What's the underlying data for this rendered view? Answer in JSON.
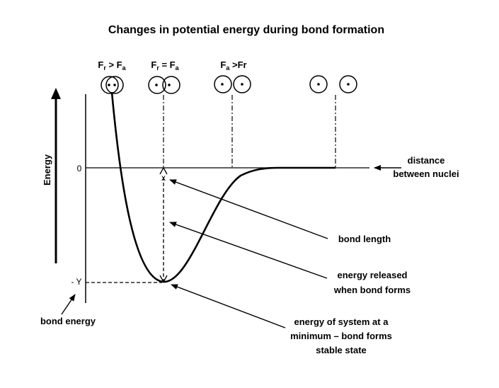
{
  "title": "Changes in potential energy during bond formation",
  "force_labels": [
    {
      "main": "F",
      "sub1": "r",
      "op": " > F",
      "sub2": "a"
    },
    {
      "main": "F",
      "sub1": "r",
      "op": " = F",
      "sub2": "a"
    },
    {
      "main": "F",
      "sub1": "a",
      "op": " >Fr",
      "sub2": ""
    }
  ],
  "y_axis": {
    "label": "Energy",
    "zero_tick": "0",
    "min_tick": "- Y"
  },
  "x_axis": {
    "label_line1": "distance",
    "label_line2": "between nuclei"
  },
  "marker_x": "x",
  "annotations": {
    "bond_length": "bond length",
    "energy_released_1": "energy released",
    "energy_released_2": "when bond forms",
    "minimum_1": "energy of system at a",
    "minimum_2": "minimum – bond forms",
    "minimum_3": "stable state",
    "bond_energy": "bond energy"
  },
  "colors": {
    "ink": "#000000",
    "background": "#ffffff"
  }
}
